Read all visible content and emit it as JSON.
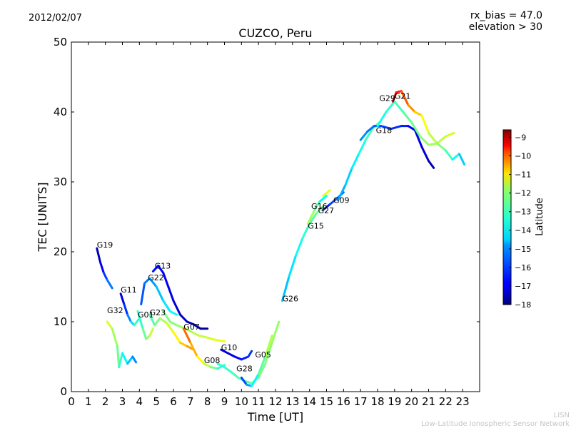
{
  "header": {
    "date": "2012/02/07",
    "rx_bias": "rx_bias = 47.0",
    "elevation": "elevation > 30"
  },
  "footer": {
    "watermark_short": "LISN",
    "watermark_long": "Low-Latitude Ionospheric Sensor Network"
  },
  "chart_data": {
    "type": "scatter",
    "title": "CUZCO, Peru",
    "xlabel": "Time [UT]",
    "ylabel": "TEC [UNITS]",
    "xlim": [
      0,
      24
    ],
    "ylim": [
      0,
      50
    ],
    "xticks": [
      0,
      1,
      2,
      3,
      4,
      5,
      6,
      7,
      8,
      9,
      10,
      11,
      12,
      13,
      14,
      15,
      16,
      17,
      18,
      19,
      20,
      21,
      22,
      23
    ],
    "yticks": [
      0,
      10,
      20,
      30,
      40,
      50
    ],
    "grid": false,
    "colorbar": {
      "label": "Latitude",
      "range": [
        -18,
        -8.6
      ],
      "ticks": [
        -9,
        -10,
        -11,
        -12,
        -13,
        -14,
        -15,
        -16,
        -17,
        -18
      ]
    },
    "series": [
      {
        "name": "G19",
        "lat_start": -17.8,
        "lat_end": -15.4,
        "points": [
          [
            1.5,
            20.5
          ],
          [
            1.7,
            18.5
          ],
          [
            1.9,
            17.0
          ],
          [
            2.1,
            16.0
          ],
          [
            2.4,
            14.8
          ]
        ]
      },
      {
        "name": "G32",
        "lat_start": -12.2,
        "lat_end": -15.8,
        "points": [
          [
            2.1,
            10.0
          ],
          [
            2.4,
            9.0
          ],
          [
            2.7,
            6.5
          ],
          [
            2.8,
            3.5
          ],
          [
            3.0,
            5.5
          ],
          [
            3.3,
            4.0
          ],
          [
            3.6,
            5.0
          ],
          [
            3.8,
            4.2
          ]
        ]
      },
      {
        "name": "G11",
        "lat_start": -17.6,
        "lat_end": -13.6,
        "points": [
          [
            2.9,
            14.0
          ],
          [
            3.1,
            12.5
          ],
          [
            3.3,
            11.0
          ],
          [
            3.5,
            10.0
          ],
          [
            3.7,
            9.5
          ],
          [
            4.0,
            10.5
          ]
        ]
      },
      {
        "name": "G01",
        "lat_start": -14.2,
        "lat_end": -12.4,
        "points": [
          [
            3.9,
            11.5
          ],
          [
            4.2,
            9.0
          ],
          [
            4.4,
            7.5
          ],
          [
            4.6,
            8.0
          ],
          [
            4.8,
            9.0
          ]
        ]
      },
      {
        "name": "G23",
        "lat_start": -14.0,
        "lat_end": -11.0,
        "points": [
          [
            4.6,
            11.0
          ],
          [
            4.9,
            9.5
          ],
          [
            5.2,
            10.5
          ],
          [
            5.6,
            9.8
          ],
          [
            6.0,
            8.5
          ],
          [
            6.4,
            7.0
          ],
          [
            6.8,
            6.5
          ],
          [
            7.2,
            6.0
          ]
        ]
      },
      {
        "name": "G22",
        "lat_start": -16.2,
        "lat_end": -14.2,
        "points": [
          [
            4.1,
            12.5
          ],
          [
            4.3,
            15.5
          ],
          [
            4.6,
            16.2
          ],
          [
            5.0,
            15.0
          ],
          [
            5.4,
            13.0
          ],
          [
            5.8,
            11.5
          ],
          [
            6.2,
            11.0
          ]
        ]
      },
      {
        "name": "G13",
        "lat_start": -16.6,
        "lat_end": -17.8,
        "points": [
          [
            4.8,
            17.2
          ],
          [
            5.1,
            18.0
          ],
          [
            5.4,
            17.0
          ],
          [
            5.7,
            15.0
          ],
          [
            6.0,
            13.0
          ],
          [
            6.4,
            11.0
          ],
          [
            6.8,
            10.0
          ],
          [
            7.2,
            9.6
          ],
          [
            7.6,
            9.0
          ],
          [
            8.0,
            9.0
          ]
        ]
      },
      {
        "name": "G07",
        "lat_start": -13.4,
        "lat_end": -12.2,
        "points": [
          [
            5.4,
            11.5
          ],
          [
            5.8,
            10.0
          ],
          [
            6.2,
            9.5
          ],
          [
            6.7,
            9.0
          ],
          [
            7.1,
            8.5
          ],
          [
            7.5,
            8.0
          ],
          [
            7.9,
            7.8
          ],
          [
            8.3,
            7.5
          ],
          [
            8.7,
            7.3
          ],
          [
            9.0,
            7.2
          ]
        ]
      },
      {
        "name": "G08",
        "lat_start": -10.4,
        "lat_end": -14.4,
        "points": [
          [
            6.6,
            9.0
          ],
          [
            7.0,
            7.0
          ],
          [
            7.4,
            5.0
          ],
          [
            7.8,
            4.0
          ],
          [
            8.2,
            3.5
          ],
          [
            8.6,
            3.3
          ],
          [
            9.0,
            3.8
          ]
        ]
      },
      {
        "name": "G10",
        "lat_start": -17.4,
        "lat_end": -16.2,
        "points": [
          [
            8.8,
            6.0
          ],
          [
            9.2,
            5.5
          ],
          [
            9.6,
            5.0
          ],
          [
            10.0,
            4.6
          ],
          [
            10.4,
            5.0
          ],
          [
            10.6,
            5.8
          ]
        ]
      },
      {
        "name": "G28",
        "lat_start": -14.2,
        "lat_end": -13.0,
        "points": [
          [
            8.6,
            4.0
          ],
          [
            9.0,
            3.5
          ],
          [
            9.4,
            2.8
          ],
          [
            9.8,
            2.0
          ],
          [
            10.2,
            1.5
          ],
          [
            10.6,
            1.2
          ],
          [
            11.0,
            2.0
          ],
          [
            11.4,
            4.0
          ],
          [
            11.8,
            7.0
          ],
          [
            12.2,
            10.0
          ]
        ]
      },
      {
        "name": "G05",
        "lat_start": -16.6,
        "lat_end": -12.4,
        "points": [
          [
            10.0,
            2.0
          ],
          [
            10.3,
            1.0
          ],
          [
            10.6,
            0.8
          ],
          [
            11.0,
            2.5
          ],
          [
            11.4,
            5.0
          ],
          [
            11.8,
            8.0
          ]
        ]
      },
      {
        "name": "G26",
        "lat_start": -15.2,
        "lat_end": -13.2,
        "points": [
          [
            12.4,
            13.0
          ],
          [
            12.8,
            16.5
          ],
          [
            13.2,
            19.5
          ],
          [
            13.6,
            22.0
          ],
          [
            14.0,
            24.0
          ],
          [
            14.4,
            25.5
          ],
          [
            14.8,
            26.5
          ]
        ]
      },
      {
        "name": "G15",
        "lat_start": -12.6,
        "lat_end": -14.8,
        "points": [
          [
            13.9,
            24.0
          ],
          [
            14.3,
            26.0
          ],
          [
            14.6,
            27.2
          ],
          [
            15.0,
            28.0
          ]
        ]
      },
      {
        "name": "G27",
        "lat_start": -16.8,
        "lat_end": -15.6,
        "points": [
          [
            14.8,
            26.0
          ],
          [
            15.2,
            26.8
          ],
          [
            15.6,
            27.6
          ],
          [
            16.0,
            28.5
          ]
        ]
      },
      {
        "name": "G16",
        "lat_start": -12.8,
        "lat_end": -12.0,
        "points": [
          [
            14.8,
            28.0
          ],
          [
            15.2,
            28.8
          ]
        ]
      },
      {
        "name": "G09",
        "lat_start": -15.4,
        "lat_end": -13.4,
        "points": [
          [
            15.7,
            27.5
          ],
          [
            16.1,
            29.5
          ],
          [
            16.5,
            32.0
          ],
          [
            16.9,
            34.0
          ],
          [
            17.3,
            36.0
          ],
          [
            17.7,
            37.6
          ],
          [
            18.1,
            38.5
          ]
        ]
      },
      {
        "name": "G18",
        "lat_start": -15.4,
        "lat_end": -17.6,
        "points": [
          [
            17.0,
            36.0
          ],
          [
            17.4,
            37.2
          ],
          [
            17.8,
            38.0
          ],
          [
            18.2,
            38.0
          ],
          [
            18.8,
            37.6
          ],
          [
            19.4,
            38.0
          ],
          [
            19.8,
            38.0
          ],
          [
            20.2,
            37.4
          ],
          [
            20.6,
            35.0
          ],
          [
            21.0,
            33.0
          ],
          [
            21.3,
            32.0
          ]
        ]
      },
      {
        "name": "G29",
        "lat_start": -14.4,
        "lat_end": -12.4,
        "points": [
          [
            18.0,
            38.0
          ],
          [
            18.5,
            40.0
          ],
          [
            19.0,
            41.5
          ],
          [
            19.5,
            40.0
          ],
          [
            20.0,
            38.5
          ],
          [
            20.5,
            36.5
          ],
          [
            21.0,
            35.3
          ],
          [
            21.5,
            35.5
          ],
          [
            22.0,
            36.5
          ],
          [
            22.5,
            37.0
          ]
        ]
      },
      {
        "name": "G21",
        "lat_start": -9.2,
        "lat_end": -15.2,
        "points": [
          [
            18.9,
            41.5
          ],
          [
            19.1,
            42.8
          ],
          [
            19.4,
            43.0
          ],
          [
            19.8,
            41.0
          ],
          [
            20.2,
            40.0
          ],
          [
            20.6,
            39.5
          ],
          [
            21.0,
            37.0
          ],
          [
            21.5,
            35.5
          ],
          [
            22.0,
            34.5
          ],
          [
            22.4,
            33.2
          ],
          [
            22.8,
            34.0
          ],
          [
            23.1,
            32.5
          ]
        ]
      }
    ],
    "prn_labels": [
      {
        "text": "G19",
        "x": 1.5,
        "y": 20.6
      },
      {
        "text": "G11",
        "x": 2.9,
        "y": 14.2
      },
      {
        "text": "G32",
        "x": 2.1,
        "y": 11.2
      },
      {
        "text": "G01",
        "x": 3.9,
        "y": 10.6
      },
      {
        "text": "G13",
        "x": 4.9,
        "y": 17.6
      },
      {
        "text": "G22",
        "x": 4.5,
        "y": 15.9
      },
      {
        "text": "G23",
        "x": 4.6,
        "y": 10.9
      },
      {
        "text": "G07",
        "x": 6.6,
        "y": 8.9
      },
      {
        "text": "G08",
        "x": 7.8,
        "y": 4.1
      },
      {
        "text": "G10",
        "x": 8.8,
        "y": 5.9
      },
      {
        "text": "G28",
        "x": 9.7,
        "y": 2.9
      },
      {
        "text": "G05",
        "x": 10.8,
        "y": 4.9
      },
      {
        "text": "G26",
        "x": 12.4,
        "y": 12.9
      },
      {
        "text": "G15",
        "x": 13.9,
        "y": 23.3
      },
      {
        "text": "G27",
        "x": 14.5,
        "y": 25.5
      },
      {
        "text": "G16",
        "x": 14.1,
        "y": 26.1
      },
      {
        "text": "G09",
        "x": 15.4,
        "y": 27.0
      },
      {
        "text": "G18",
        "x": 17.9,
        "y": 37.0
      },
      {
        "text": "G29",
        "x": 18.1,
        "y": 41.6
      },
      {
        "text": "G21",
        "x": 19.0,
        "y": 41.9
      }
    ]
  }
}
